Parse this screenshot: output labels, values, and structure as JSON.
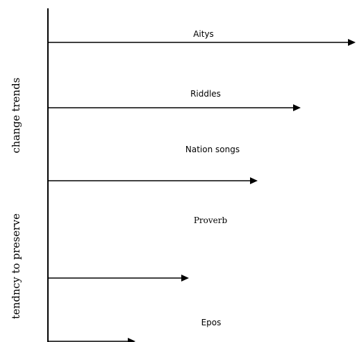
{
  "axis_labels": {
    "upper": "change trends",
    "lower": "tendncy to preserve"
  },
  "items": [
    {
      "label": "Aitys"
    },
    {
      "label": "Riddles"
    },
    {
      "label": "Nation songs"
    },
    {
      "label": "Proverb"
    },
    {
      "label": "Epos"
    }
  ],
  "colors": {
    "line": "#000000",
    "background": "#ffffff"
  }
}
